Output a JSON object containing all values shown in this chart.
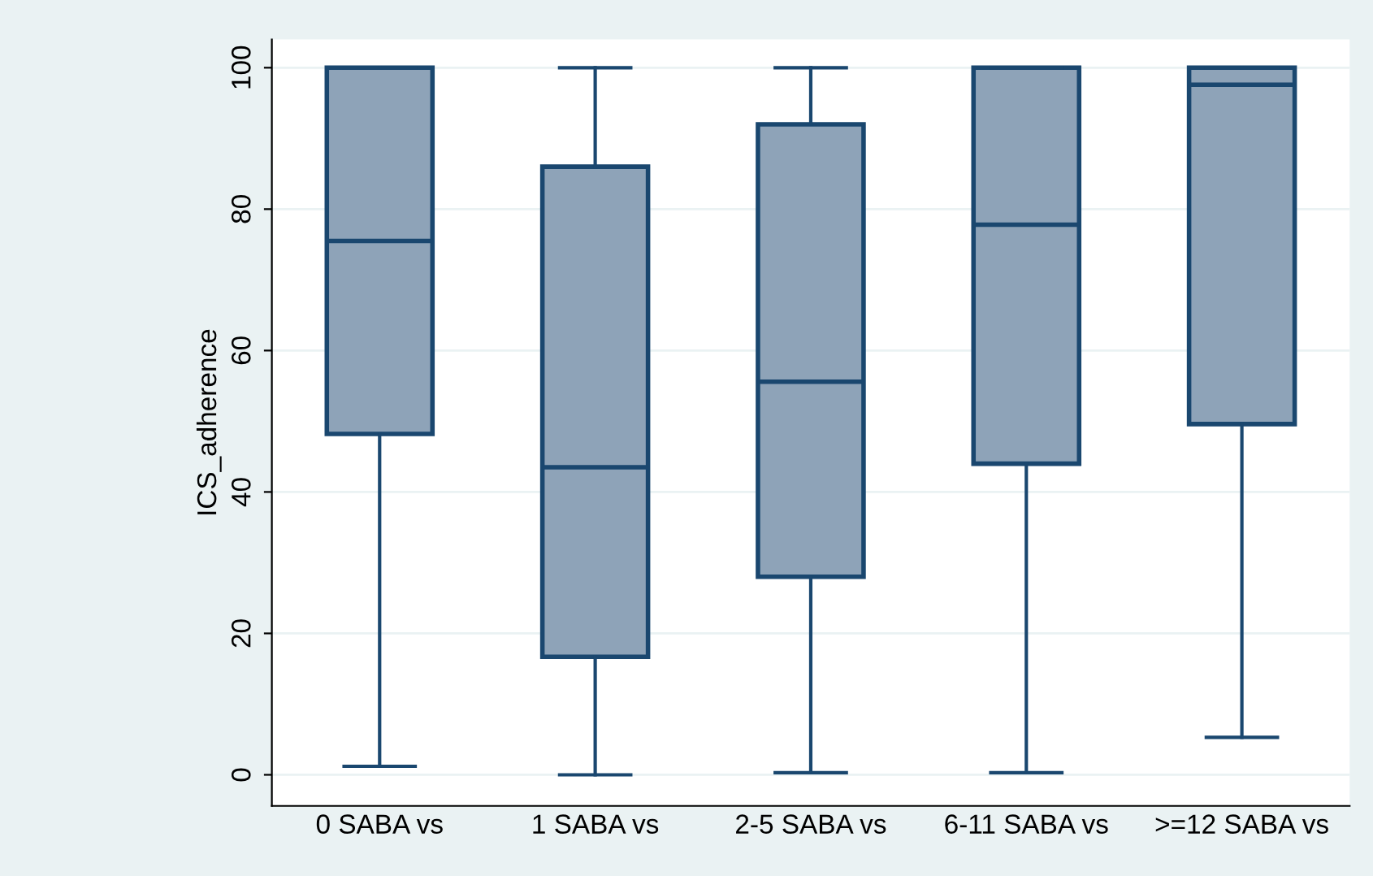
{
  "chart_data": {
    "type": "box",
    "ylabel": "ICS_adherence",
    "categories": [
      "0 SABA vs",
      "1 SABA vs",
      "2-5 SABA vs",
      "6-11 SABA vs",
      ">=12 SABA vs"
    ],
    "boxes": [
      {
        "low": 1.2,
        "q1": 48.2,
        "median": 75.5,
        "q3": 100,
        "high": 100
      },
      {
        "low": 0,
        "q1": 16.7,
        "median": 43.5,
        "q3": 86,
        "high": 100
      },
      {
        "low": 0.3,
        "q1": 28,
        "median": 55.6,
        "q3": 92,
        "high": 100
      },
      {
        "low": 0.3,
        "q1": 44,
        "median": 77.8,
        "q3": 100,
        "high": 100
      },
      {
        "low": 5.3,
        "q1": 49.6,
        "median": 97.6,
        "q3": 100,
        "high": 100
      }
    ],
    "color": "#8ea3b8",
    "ylim": [
      -4.4,
      104
    ],
    "yticks": [
      0,
      20,
      40,
      60,
      80,
      100
    ],
    "grid": "y",
    "legend": false
  }
}
